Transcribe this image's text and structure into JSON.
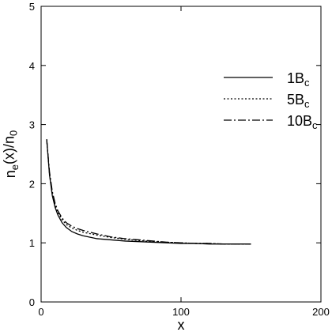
{
  "chart_data": {
    "type": "line",
    "title": "",
    "xlabel": "x",
    "ylabel": "n_e(x)/n_0",
    "xlim": [
      0,
      200
    ],
    "ylim": [
      0,
      5
    ],
    "xticks": [
      0,
      100,
      200
    ],
    "yticks": [
      0,
      1,
      2,
      3,
      4,
      5
    ],
    "grid": false,
    "legend_position": "top-right",
    "series": [
      {
        "name": "1B_c",
        "style": "solid",
        "x": [
          4,
          6,
          8,
          10,
          12,
          15,
          18,
          22,
          26,
          30,
          40,
          50,
          60,
          70,
          80,
          90,
          100,
          110,
          120,
          130,
          140,
          150
        ],
        "y": [
          2.75,
          2.15,
          1.8,
          1.6,
          1.47,
          1.34,
          1.26,
          1.19,
          1.15,
          1.12,
          1.07,
          1.05,
          1.03,
          1.02,
          1.01,
          1.0,
          0.99,
          0.99,
          0.98,
          0.98,
          0.98,
          0.98
        ]
      },
      {
        "name": "5B_c",
        "style": "dotted",
        "x": [
          4,
          6,
          8,
          10,
          12,
          15,
          18,
          22,
          26,
          30,
          40,
          50,
          60,
          70,
          80,
          90,
          100,
          110,
          120,
          130,
          140,
          150
        ],
        "y": [
          2.75,
          2.17,
          1.84,
          1.64,
          1.51,
          1.39,
          1.31,
          1.25,
          1.21,
          1.18,
          1.13,
          1.09,
          1.06,
          1.04,
          1.02,
          1.01,
          1.0,
          0.99,
          0.99,
          0.98,
          0.98,
          0.98
        ]
      },
      {
        "name": "10B_c",
        "style": "dashdot",
        "x": [
          4,
          6,
          8,
          10,
          12,
          15,
          18,
          22,
          26,
          30,
          40,
          50,
          60,
          70,
          80,
          90,
          100,
          110,
          120,
          130,
          140,
          150
        ],
        "y": [
          2.75,
          2.2,
          1.87,
          1.67,
          1.54,
          1.42,
          1.34,
          1.28,
          1.24,
          1.21,
          1.15,
          1.1,
          1.07,
          1.05,
          1.03,
          1.01,
          1.0,
          0.99,
          0.99,
          0.98,
          0.98,
          0.98
        ]
      }
    ]
  }
}
